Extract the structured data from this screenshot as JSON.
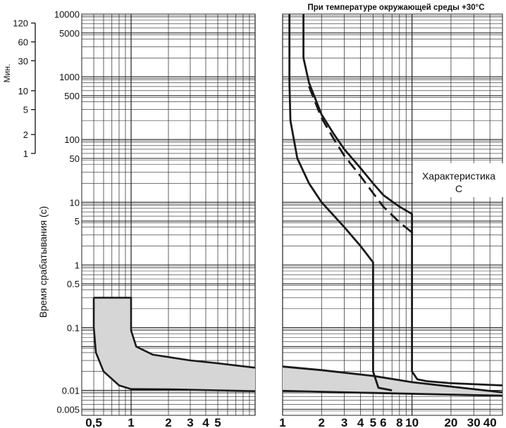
{
  "chart_data": {
    "type": "line",
    "title": "При температуре окружающей среды +30°C",
    "ylabel": "Время срабатывания (с)",
    "minutes_label": "Мин.",
    "annotation": [
      "Характеристика",
      "C"
    ],
    "grid": true,
    "y_scale": "log",
    "ylim": [
      0.004,
      10000
    ],
    "y_ticks": [
      "10000",
      "5000",
      "1000",
      "500",
      "100",
      "50",
      "10",
      "5",
      "1",
      "0.5",
      "0.1",
      "0.01",
      "0.005"
    ],
    "y_tick_values": [
      10000,
      5000,
      1000,
      500,
      100,
      50,
      10,
      5,
      1,
      0.5,
      0.1,
      0.01,
      0.005
    ],
    "minute_ticks": [
      "120",
      "60",
      "30",
      "10",
      "5",
      "2",
      "1"
    ],
    "minute_tick_values": [
      120,
      60,
      30,
      10,
      5,
      2,
      1
    ],
    "left_panel": {
      "x_scale": "log",
      "xlim": [
        0.4,
        10
      ],
      "x_ticks": [
        "0,5",
        "1",
        "2",
        "3",
        "4",
        "5"
      ],
      "x_tick_values": [
        0.5,
        1,
        2,
        3,
        4,
        5
      ],
      "band_upper": [
        [
          0.5,
          0.3
        ],
        [
          1,
          0.3
        ],
        [
          1,
          0.09
        ],
        [
          1.1,
          0.05
        ],
        [
          1.5,
          0.037
        ],
        [
          2,
          0.034
        ],
        [
          3,
          0.03
        ],
        [
          5,
          0.027
        ],
        [
          10,
          0.023
        ]
      ],
      "band_lower": [
        [
          0.5,
          0.1
        ],
        [
          0.52,
          0.04
        ],
        [
          0.6,
          0.02
        ],
        [
          0.8,
          0.012
        ],
        [
          1,
          0.0105
        ],
        [
          2,
          0.0104
        ],
        [
          5,
          0.01
        ],
        [
          10,
          0.0097
        ]
      ]
    },
    "right_panel": {
      "x_scale": "log",
      "xlim": [
        1,
        50
      ],
      "x_ticks": [
        "1",
        "2",
        "3",
        "4",
        "5",
        "6",
        "8",
        "10",
        "20",
        "30",
        "40"
      ],
      "x_tick_values": [
        1,
        2,
        3,
        4,
        5,
        6,
        8,
        10,
        20,
        30,
        40
      ],
      "series": [
        {
          "style": "solid",
          "points": [
            [
              1.13,
              10000
            ],
            [
              1.13,
              800
            ],
            [
              1.15,
              200
            ],
            [
              1.3,
              50
            ],
            [
              1.6,
              20
            ],
            [
              2,
              10
            ],
            [
              3,
              4
            ],
            [
              4,
              2
            ],
            [
              5,
              1.1
            ],
            [
              5,
              0.02
            ],
            [
              5.5,
              0.011
            ],
            [
              7,
              0.01
            ]
          ]
        },
        {
          "style": "solid",
          "points": [
            [
              1.45,
              10000
            ],
            [
              1.45,
              2000
            ],
            [
              1.6,
              800
            ],
            [
              2,
              250
            ],
            [
              2.5,
              120
            ],
            [
              3,
              70
            ],
            [
              4,
              35
            ],
            [
              5,
              20
            ],
            [
              6,
              13
            ],
            [
              8,
              8.5
            ],
            [
              10,
              6.5
            ],
            [
              10,
              0.02
            ],
            [
              11,
              0.015
            ],
            [
              13,
              0.014
            ],
            [
              20,
              0.013
            ],
            [
              50,
              0.012
            ]
          ]
        },
        {
          "style": "dashed",
          "points": [
            [
              1.6,
              700
            ],
            [
              2,
              220
            ],
            [
              2.5,
              100
            ],
            [
              3,
              55
            ],
            [
              4,
              26
            ],
            [
              5,
              14
            ],
            [
              6,
              8.5
            ],
            [
              8,
              4.8
            ],
            [
              10,
              3.3
            ]
          ]
        },
        {
          "style": "solid",
          "points": [
            [
              1,
              0.024
            ],
            [
              2,
              0.021
            ],
            [
              5,
              0.017
            ],
            [
              10,
              0.0135
            ],
            [
              20,
              0.0115
            ],
            [
              50,
              0.0093
            ]
          ]
        },
        {
          "style": "solid",
          "points": [
            [
              1,
              0.0098
            ],
            [
              5,
              0.0091
            ],
            [
              50,
              0.0082
            ]
          ]
        }
      ],
      "band_upper": [
        [
          1,
          0.024
        ],
        [
          2,
          0.021
        ],
        [
          5,
          0.017
        ],
        [
          10,
          0.0135
        ],
        [
          20,
          0.0115
        ],
        [
          50,
          0.0093
        ]
      ],
      "band_lower": [
        [
          1,
          0.0098
        ],
        [
          5,
          0.0091
        ],
        [
          50,
          0.0082
        ]
      ]
    }
  }
}
